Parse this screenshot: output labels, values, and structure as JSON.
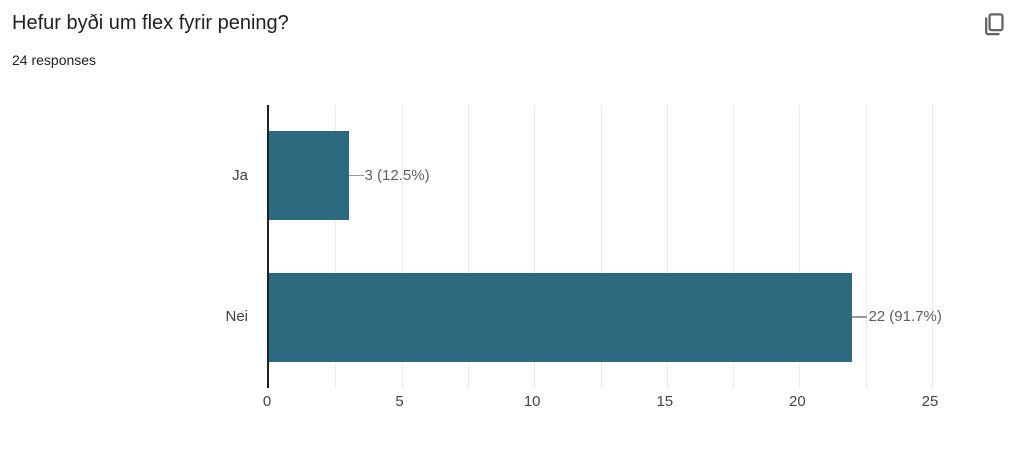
{
  "header": {
    "title": "Hefur byði um flex fyrir pening?",
    "responses": "24 responses"
  },
  "toolbar": {
    "copy_icon": "copy-chart-icon"
  },
  "colors": {
    "background": "#ffffff",
    "bar": "#2c6a80",
    "axis_line": "#212121",
    "gridline": "#e9e9e9",
    "title_text": "#202124",
    "responses_text": "#202124",
    "category_text": "#3c4043",
    "tick_text": "#444444",
    "value_text": "#5f5f5f",
    "callout_line": "#999999",
    "icon": "#5f6368"
  },
  "chart_data": {
    "type": "bar",
    "orientation": "horizontal",
    "title": "Hefur byði um flex fyrir pening?",
    "subtitle": "24 responses",
    "categories": [
      "Ja",
      "Nei"
    ],
    "values": [
      3,
      22
    ],
    "value_labels": [
      "3 (12.5%)",
      "22 (91.7%)"
    ],
    "total_responses": 24,
    "xlabel": "",
    "ylabel": "",
    "xlim": [
      0,
      25
    ],
    "x_ticks": [
      "0",
      "5",
      "10",
      "15",
      "20",
      "25"
    ],
    "minor_grid_step": 2.5,
    "grid": true,
    "legend": "none"
  }
}
